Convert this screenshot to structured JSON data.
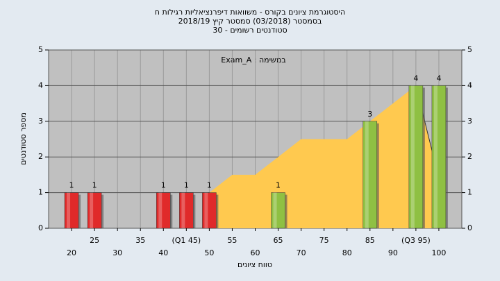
{
  "chart_data": {
    "type": "bar",
    "title": [
      "היסטוגרמת ציונים בקורס - משוואות דיפרנציאליות רגילות ח",
      "בסמסטר  (03/2018)  סמסטר קיץ  2018/19",
      "סטודנטים רשומים - 30"
    ],
    "annotation": "Exam_A : במשימה",
    "x_label": "טווח ציונים",
    "y_label": "מספר סטודנטים",
    "categories": [
      "20",
      "25",
      "30",
      "35",
      "40",
      "(Q1 45)",
      "50",
      "55",
      "60",
      "65",
      "70",
      "75",
      "80",
      "85",
      "90",
      "(Q3 95)",
      "100"
    ],
    "series": [
      {
        "type": "bar",
        "values": [
          1,
          1,
          0,
          0,
          1,
          1,
          1,
          0,
          0,
          1,
          0,
          0,
          0,
          3,
          0,
          4,
          4
        ],
        "colors": [
          "#e02a2a",
          "#e02a2a",
          "#e02a2a",
          "#e02a2a",
          "#e02a2a",
          "#e02a2a",
          "#e02a2a",
          "#8fc043",
          "#8fc043",
          "#8fc043",
          "#8fc043",
          "#8fc043",
          "#8fc043",
          "#8fc043",
          "#8fc043",
          "#8fc043",
          "#8fc043"
        ]
      },
      {
        "type": "area",
        "color": "#ffc94f",
        "values": [
          null,
          null,
          null,
          null,
          null,
          null,
          1,
          1.5,
          1.5,
          2,
          2.5,
          2.5,
          2.5,
          3,
          3.5,
          4,
          1.4
        ]
      }
    ],
    "ylim": [
      0,
      5
    ],
    "yticks": [
      0,
      1,
      2,
      3,
      4,
      5
    ],
    "y2lim": [
      0,
      5
    ],
    "y2ticks": [
      0,
      1,
      2,
      3,
      4,
      5
    ],
    "grid": true
  }
}
